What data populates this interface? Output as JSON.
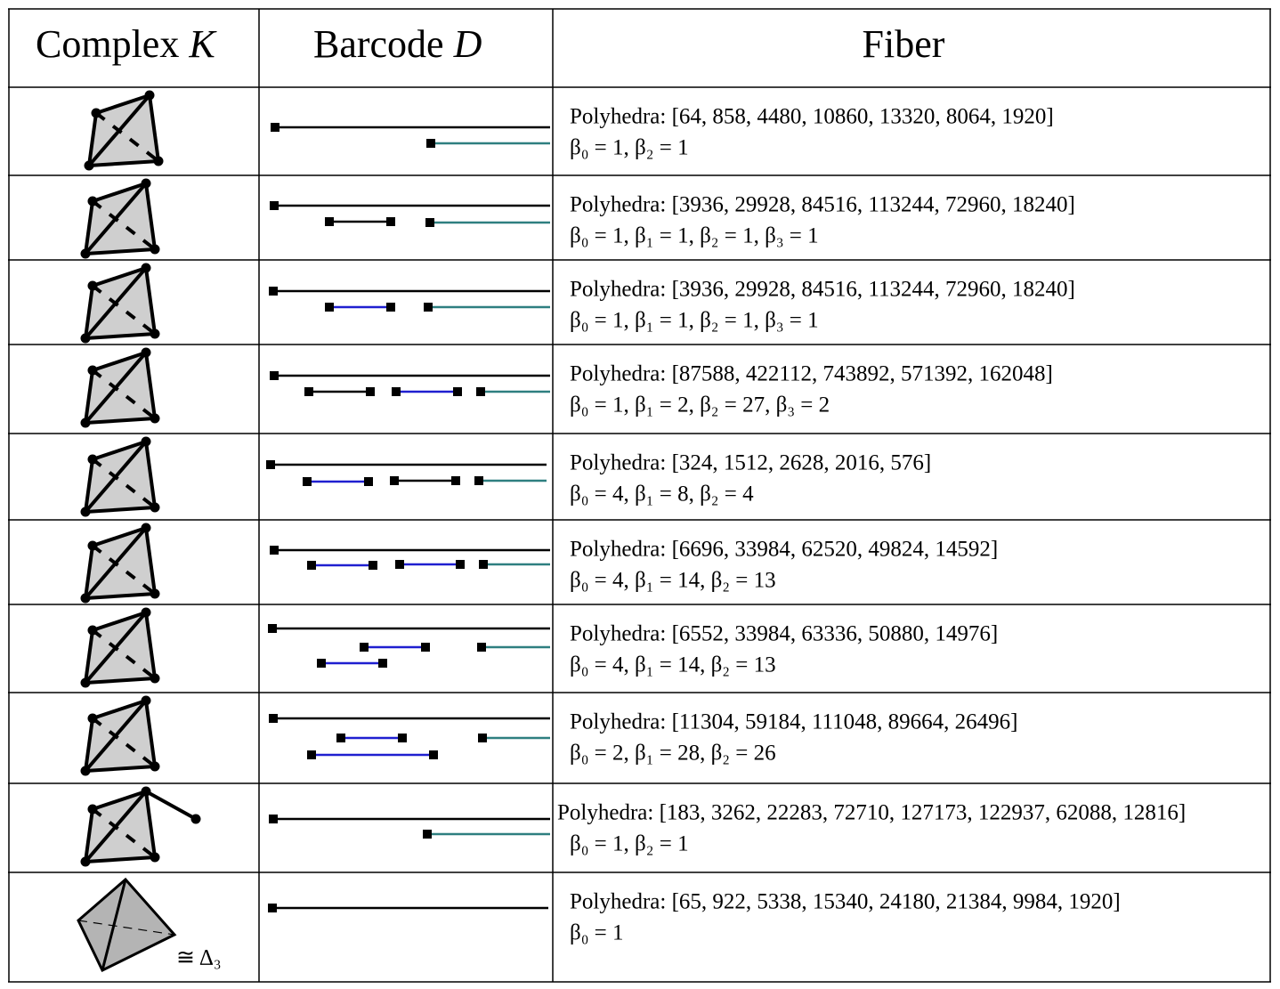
{
  "header": {
    "complex": {
      "text": "Complex",
      "var": "K"
    },
    "barcode": {
      "text": "Barcode",
      "var": "D"
    },
    "fiber": "Fiber"
  },
  "rows": [
    {
      "polyhedra": "Polyhedra: [64, 858, 4480, 10860, 13320, 8064, 1920]",
      "betti": "β₀ = 1, β₂ = 1"
    },
    {
      "polyhedra": "Polyhedra: [3936, 29928, 84516, 113244, 72960, 18240]",
      "betti": "β₀ = 1, β₁ = 1, β₂ = 1, β₃ = 1"
    },
    {
      "polyhedra": "Polyhedra: [3936, 29928, 84516, 113244, 72960, 18240]",
      "betti": "β₀ = 1, β₁ = 1, β₂ = 1, β₃ = 1"
    },
    {
      "polyhedra": "Polyhedra: [87588, 422112, 743892, 571392, 162048]",
      "betti": "β₀ = 1, β₁ = 2, β₂ = 27, β₃ = 2"
    },
    {
      "polyhedra": "Polyhedra: [324, 1512, 2628, 2016, 576]",
      "betti": "β₀ = 4, β₁ = 8, β₂ = 4"
    },
    {
      "polyhedra": "Polyhedra: [6696, 33984, 62520, 49824, 14592]",
      "betti": "β₀ = 4, β₁ = 14, β₂ = 13"
    },
    {
      "polyhedra": "Polyhedra: [6552, 33984, 63336, 50880, 14976]",
      "betti": "β₀ = 4, β₁ = 14, β₂ = 13"
    },
    {
      "polyhedra": "Polyhedra: [11304, 59184, 111048, 89664, 26496]",
      "betti": "β₀ = 2, β₁ = 28, β₂ = 26"
    },
    {
      "polyhedra": "Polyhedra: [183, 3262, 22283, 72710, 127173, 122937, 62088, 12816]",
      "betti": "β₀ = 1, β₂ = 1"
    },
    {
      "polyhedra": "Polyhedra: [65, 922, 5338, 15340, 24180, 21384, 9984, 1920]",
      "betti": "β₀ = 1",
      "complex_label": "≅ Δ₃"
    }
  ]
}
